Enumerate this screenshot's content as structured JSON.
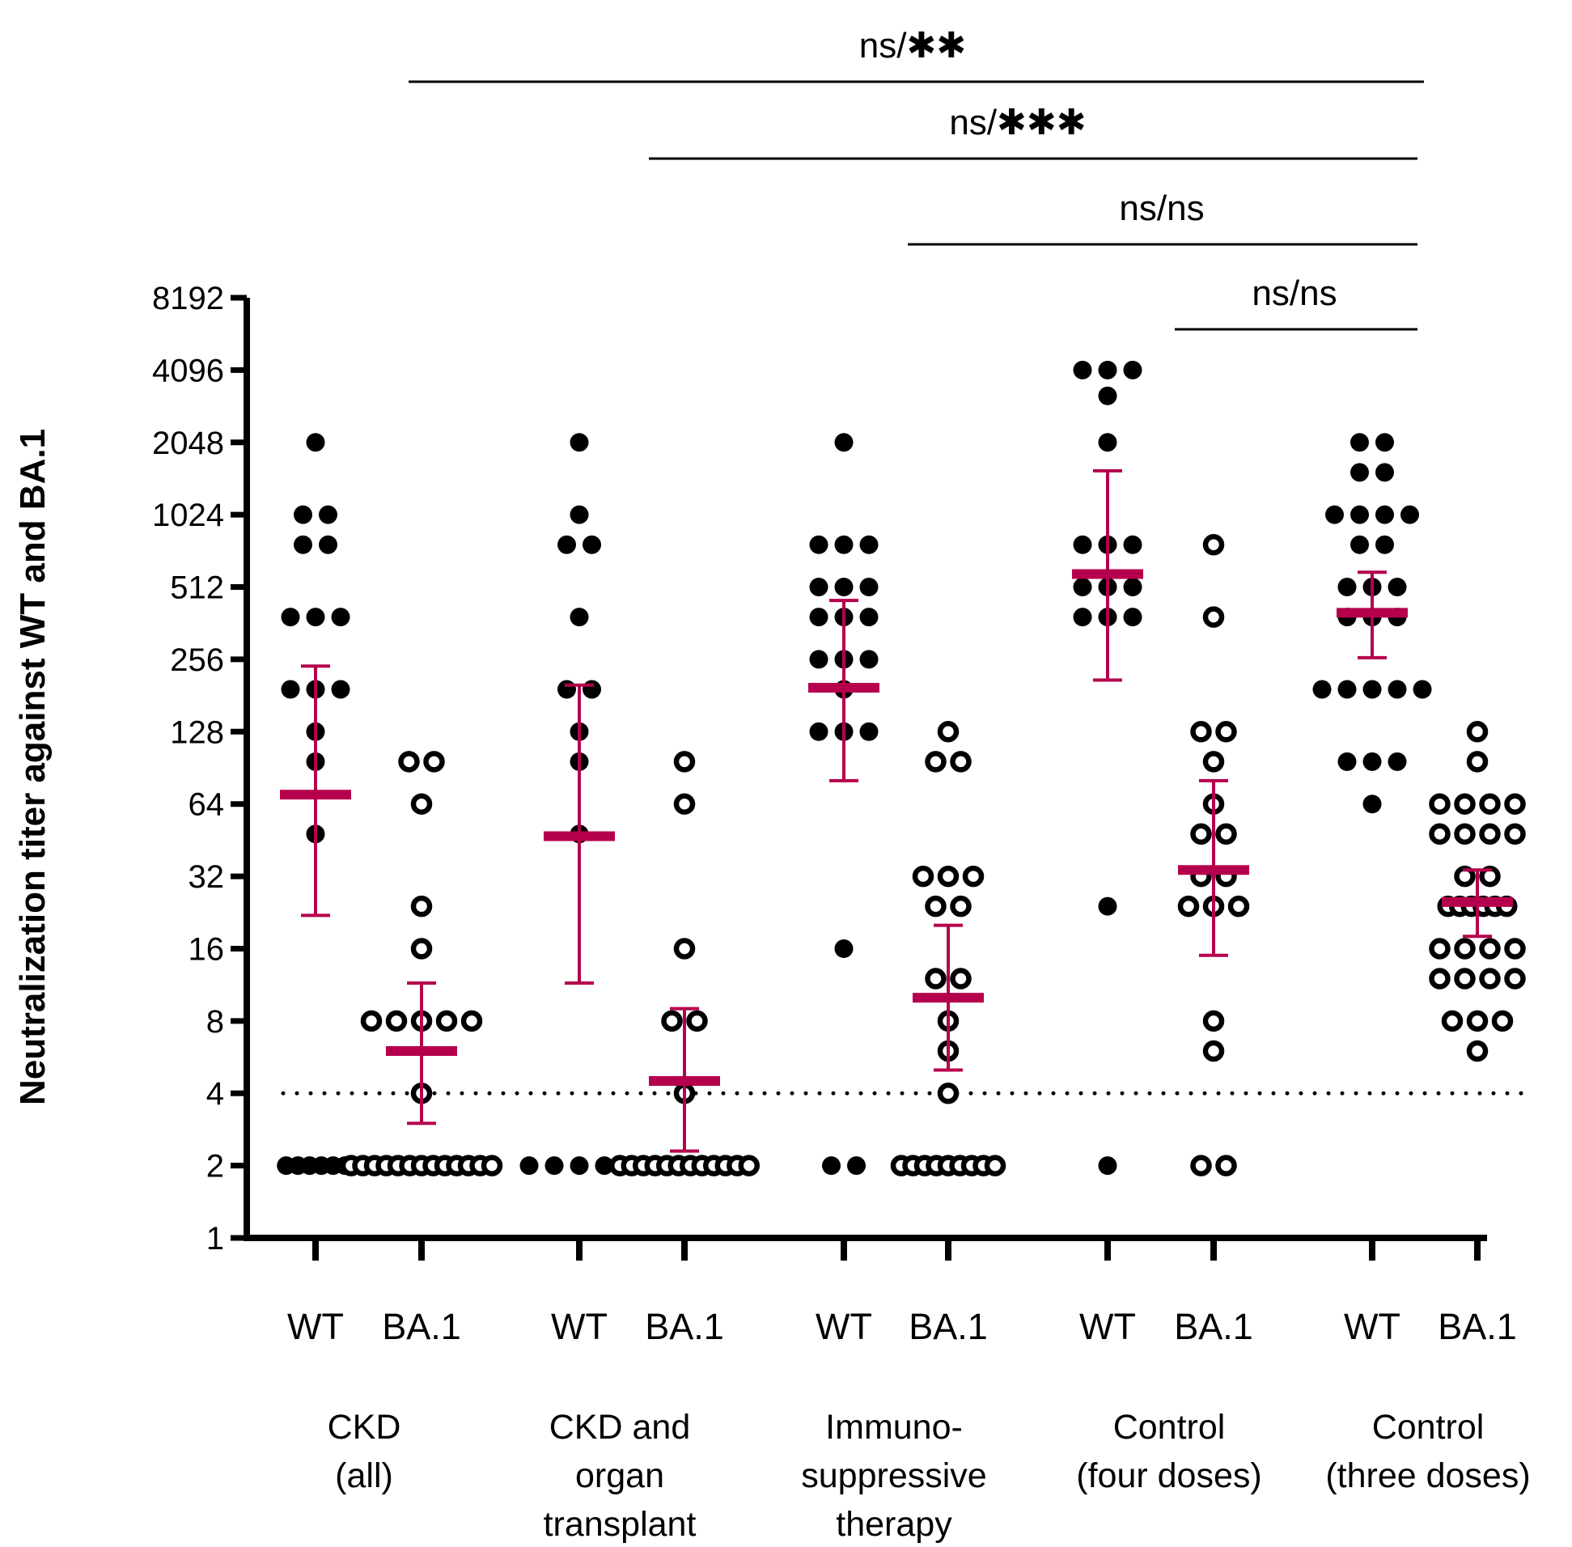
{
  "chart_data": {
    "type": "scatter",
    "title": "",
    "xlabel": "",
    "ylabel": "Neutralization titer against WT and BA.1",
    "yscale": "log2",
    "ylim": [
      1,
      8192
    ],
    "yticks": [
      "1",
      "2",
      "4",
      "8",
      "16",
      "32",
      "64",
      "128",
      "256",
      "512",
      "1024",
      "2048",
      "4096",
      "8192"
    ],
    "detection_limit": 4,
    "colors": {
      "points": "#000000",
      "mean": "#b5004d",
      "axis": "#000000"
    },
    "marker_style": {
      "WT": "filled",
      "BA.1": "open"
    },
    "groups": [
      {
        "label": [
          "CKD",
          "(all)"
        ],
        "series": [
          {
            "name": "WT",
            "values": [
              2,
              2,
              2,
              2,
              2,
              2,
              48,
              96,
              128,
              192,
              192,
              192,
              384,
              384,
              384,
              768,
              768,
              1024,
              1024,
              2048
            ],
            "mean": 70,
            "ci": [
              22,
              240
            ]
          },
          {
            "name": "BA.1",
            "values": [
              2,
              2,
              2,
              2,
              2,
              2,
              2,
              2,
              2,
              2,
              2,
              2,
              2,
              4,
              8,
              8,
              8,
              8,
              8,
              16,
              24,
              64,
              96,
              96
            ],
            "mean": 6,
            "ci": [
              3,
              11.5
            ]
          }
        ]
      },
      {
        "label": [
          "CKD and",
          "organ",
          "transplant"
        ],
        "series": [
          {
            "name": "WT",
            "values": [
              2,
              2,
              2,
              2,
              2,
              48,
              96,
              128,
              192,
              192,
              384,
              768,
              768,
              1024,
              2048
            ],
            "mean": 47,
            "ci": [
              11.5,
              200
            ]
          },
          {
            "name": "BA.1",
            "values": [
              2,
              2,
              2,
              2,
              2,
              2,
              2,
              2,
              2,
              2,
              2,
              2,
              4,
              8,
              8,
              16,
              64,
              96
            ],
            "mean": 4.5,
            "ci": [
              2.3,
              9
            ]
          }
        ]
      },
      {
        "label": [
          "Immuno-",
          "suppressive",
          "therapy"
        ],
        "series": [
          {
            "name": "WT",
            "values": [
              2,
              2,
              16,
              128,
              128,
              128,
              192,
              256,
              256,
              256,
              384,
              384,
              384,
              512,
              512,
              512,
              768,
              768,
              768,
              2048
            ],
            "mean": 195,
            "ci": [
              80,
              450
            ]
          },
          {
            "name": "BA.1",
            "values": [
              2,
              2,
              2,
              2,
              2,
              2,
              2,
              2,
              2,
              4,
              6,
              8,
              12,
              12,
              24,
              24,
              32,
              32,
              32,
              96,
              96,
              128
            ],
            "mean": 10,
            "ci": [
              5,
              20
            ]
          }
        ]
      },
      {
        "label": [
          "Control",
          "(four doses)"
        ],
        "series": [
          {
            "name": "WT",
            "values": [
              2,
              24,
              384,
              384,
              384,
              512,
              512,
              512,
              768,
              768,
              768,
              2048,
              3200,
              4096,
              4096,
              4096
            ],
            "mean": 580,
            "ci": [
              210,
              1560
            ]
          },
          {
            "name": "BA.1",
            "values": [
              2,
              2,
              6,
              8,
              24,
              24,
              24,
              32,
              32,
              48,
              48,
              64,
              96,
              128,
              128,
              384,
              768
            ],
            "mean": 34,
            "ci": [
              15,
              80
            ]
          }
        ]
      },
      {
        "label": [
          "Control",
          "(three doses)"
        ],
        "series": [
          {
            "name": "WT",
            "values": [
              64,
              96,
              96,
              96,
              192,
              192,
              192,
              192,
              192,
              384,
              384,
              384,
              512,
              512,
              512,
              768,
              768,
              1024,
              1024,
              1024,
              1024,
              1536,
              1536,
              2048,
              2048
            ],
            "mean": 400,
            "ci": [
              260,
              590
            ]
          },
          {
            "name": "BA.1",
            "values": [
              6,
              8,
              8,
              8,
              12,
              12,
              12,
              12,
              16,
              16,
              16,
              16,
              24,
              24,
              24,
              24,
              24,
              24,
              32,
              32,
              48,
              48,
              48,
              48,
              64,
              64,
              64,
              64,
              96,
              128
            ],
            "mean": 25,
            "ci": [
              18,
              34
            ]
          }
        ]
      }
    ],
    "comparisons": [
      {
        "from_group": 0,
        "to_group": 4,
        "label": "ns/✱✱"
      },
      {
        "from_group": 1,
        "to_group": 4,
        "label": "ns/✱✱✱"
      },
      {
        "from_group": 2,
        "to_group": 4,
        "label": "ns/ns"
      },
      {
        "from_group": 3,
        "to_group": 4,
        "label": "ns/ns"
      }
    ]
  }
}
